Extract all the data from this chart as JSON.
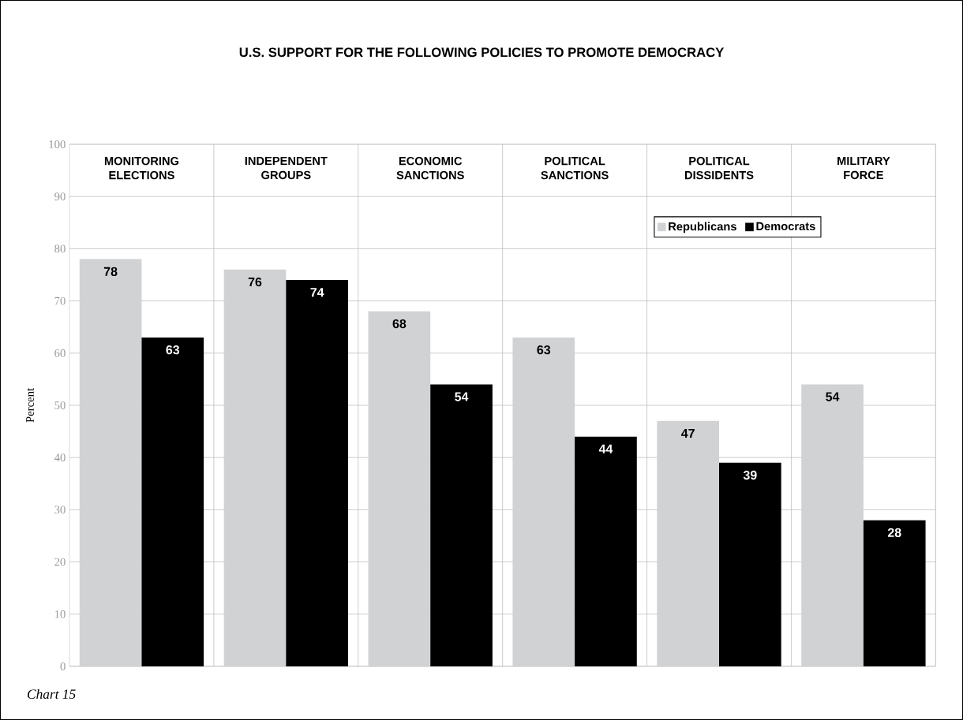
{
  "chart_data": {
    "type": "bar",
    "title": "U.S. SUPPORT FOR THE FOLLOWING POLICIES TO PROMOTE DEMOCRACY",
    "ylabel": "Percent",
    "categories": [
      "MONITORING ELECTIONS",
      "INDEPENDENT GROUPS",
      "ECONOMIC SANCTIONS",
      "POLITICAL SANCTIONS",
      "POLITICAL DISSIDENTS",
      "MILITARY FORCE"
    ],
    "series": [
      {
        "name": "Republicans",
        "color": "#d1d2d4",
        "values": [
          78,
          76,
          68,
          63,
          47,
          54
        ]
      },
      {
        "name": "Democrats",
        "color": "#000000",
        "values": [
          63,
          74,
          54,
          44,
          39,
          28
        ]
      }
    ],
    "ylim": [
      0,
      100
    ],
    "yticks": [
      0,
      10,
      20,
      30,
      40,
      50,
      60,
      70,
      80,
      90,
      100
    ],
    "grid": true,
    "legend": "top right",
    "data_labels": true,
    "annotations": [
      "Chart 15"
    ]
  }
}
